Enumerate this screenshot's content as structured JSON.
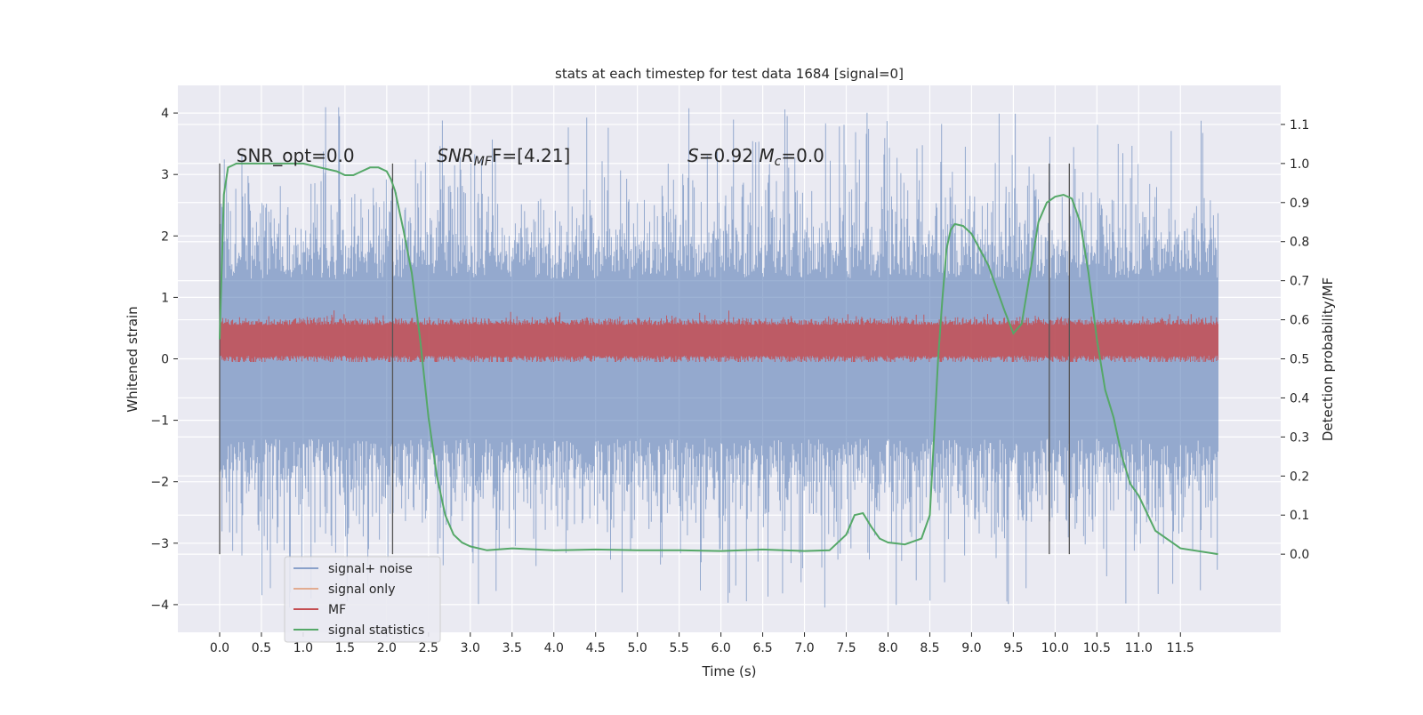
{
  "chart_data": {
    "type": "line",
    "title": "stats at each timestep for test data 1684 [signal=0]",
    "xlabel": "Time (s)",
    "ylabel_left": "Whitened strain",
    "ylabel_right": "Detection probability/MF",
    "xlim": [
      -0.5,
      12.7
    ],
    "ylim_left": [
      -4.45,
      4.45
    ],
    "ylim_right": [
      -0.2,
      1.2
    ],
    "x_ticks": [
      "0.0",
      "0.5",
      "1.0",
      "1.5",
      "2.0",
      "2.5",
      "3.0",
      "3.5",
      "4.0",
      "4.5",
      "5.0",
      "5.5",
      "6.0",
      "6.5",
      "7.0",
      "7.5",
      "8.0",
      "8.5",
      "9.0",
      "9.5",
      "10.0",
      "10.5",
      "11.0",
      "11.5"
    ],
    "y_ticks_left": [
      "4",
      "3",
      "2",
      "1",
      "0",
      "−1",
      "−2",
      "−3",
      "−4"
    ],
    "y_ticks_right": [
      "1.1",
      "1.0",
      "0.9",
      "0.8",
      "0.7",
      "0.6",
      "0.5",
      "0.4",
      "0.3",
      "0.2",
      "0.1",
      "0.0"
    ],
    "grid": true,
    "legend_position": "lower-left",
    "annotations": [
      {
        "text": "SNR_opt=0.0",
        "x": 0.2
      },
      {
        "text_parts": [
          [
            "SNR",
            "i"
          ],
          [
            "MF",
            "sub-i"
          ],
          [
            "F=[4.21]",
            ""
          ]
        ],
        "x": 2.6
      },
      {
        "text_parts": [
          [
            "S",
            "i"
          ],
          [
            "=0.92   ",
            ""
          ],
          [
            "M",
            "i"
          ],
          [
            "c",
            "sub-i"
          ],
          [
            "=0.0",
            ""
          ]
        ],
        "x": 5.6
      }
    ],
    "vertical_lines": [
      0.0,
      2.07,
      9.93,
      10.17
    ],
    "series": [
      {
        "name": "signal+ noise",
        "color": "#4c72b0",
        "style": "noise band",
        "x_range": [
          0.0,
          11.95
        ],
        "typical_range": [
          -1.3,
          1.3
        ],
        "peak_range": [
          -4.05,
          4.1
        ]
      },
      {
        "name": "signal only",
        "color": "#dd8452",
        "style": "line",
        "x": [],
        "y": []
      },
      {
        "name": "MF",
        "color": "#c44e52",
        "style": "noise band",
        "x_range": [
          0.0,
          11.95
        ],
        "typical_range": [
          0.05,
          0.55
        ],
        "peak_range": [
          -0.05,
          0.9
        ]
      },
      {
        "name": "signal statistics",
        "color": "#55a868",
        "axis": "right",
        "x": [
          0.0,
          0.05,
          0.1,
          0.15,
          0.2,
          0.3,
          0.5,
          0.8,
          1.0,
          1.2,
          1.4,
          1.5,
          1.6,
          1.7,
          1.8,
          1.9,
          2.0,
          2.05,
          2.1,
          2.15,
          2.2,
          2.3,
          2.4,
          2.5,
          2.6,
          2.7,
          2.8,
          2.9,
          3.0,
          3.2,
          3.5,
          4.0,
          4.5,
          5.0,
          5.5,
          6.0,
          6.5,
          7.0,
          7.3,
          7.5,
          7.6,
          7.7,
          7.8,
          7.9,
          8.0,
          8.2,
          8.4,
          8.5,
          8.55,
          8.6,
          8.65,
          8.7,
          8.75,
          8.8,
          8.9,
          9.0,
          9.2,
          9.4,
          9.5,
          9.6,
          9.7,
          9.8,
          9.9,
          10.0,
          10.1,
          10.2,
          10.3,
          10.4,
          10.5,
          10.6,
          10.7,
          10.8,
          10.9,
          11.0,
          11.2,
          11.5,
          11.95
        ],
        "y": [
          0.55,
          0.92,
          0.99,
          0.995,
          1.0,
          1.0,
          1.0,
          1.0,
          1.0,
          0.99,
          0.98,
          0.97,
          0.97,
          0.98,
          0.99,
          0.99,
          0.98,
          0.96,
          0.93,
          0.88,
          0.83,
          0.72,
          0.55,
          0.35,
          0.2,
          0.1,
          0.05,
          0.03,
          0.02,
          0.01,
          0.015,
          0.01,
          0.012,
          0.01,
          0.01,
          0.008,
          0.012,
          0.008,
          0.01,
          0.05,
          0.1,
          0.105,
          0.07,
          0.04,
          0.03,
          0.025,
          0.04,
          0.1,
          0.3,
          0.5,
          0.65,
          0.78,
          0.83,
          0.845,
          0.84,
          0.82,
          0.74,
          0.62,
          0.565,
          0.59,
          0.72,
          0.85,
          0.9,
          0.915,
          0.92,
          0.91,
          0.85,
          0.72,
          0.55,
          0.42,
          0.35,
          0.25,
          0.18,
          0.15,
          0.06,
          0.015,
          0.0
        ]
      }
    ]
  }
}
